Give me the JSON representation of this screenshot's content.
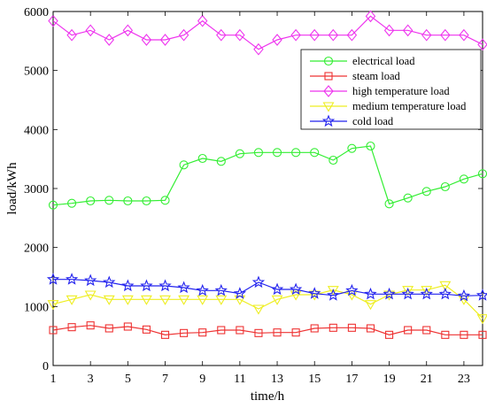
{
  "chart_data": {
    "type": "line",
    "xlabel": "time/h",
    "ylabel": "load/kWh",
    "xlim": [
      1,
      24
    ],
    "ylim": [
      0,
      6000
    ],
    "x": [
      1,
      2,
      3,
      4,
      5,
      6,
      7,
      8,
      9,
      10,
      11,
      12,
      13,
      14,
      15,
      16,
      17,
      18,
      19,
      20,
      21,
      22,
      23,
      24
    ],
    "xticks": [
      1,
      3,
      5,
      7,
      9,
      11,
      13,
      15,
      17,
      19,
      21,
      23
    ],
    "yticks": [
      0,
      1000,
      2000,
      3000,
      4000,
      5000,
      6000
    ],
    "grid": false,
    "legend_position": "top-right",
    "series": [
      {
        "name": "electrical load",
        "color": "#33ee33",
        "marker": "circle",
        "values": [
          2720,
          2750,
          2790,
          2800,
          2790,
          2790,
          2800,
          3400,
          3510,
          3460,
          3590,
          3610,
          3610,
          3610,
          3610,
          3480,
          3680,
          3720,
          2740,
          2840,
          2950,
          3030,
          3160,
          3250
        ]
      },
      {
        "name": "steam load",
        "color": "#ee3333",
        "marker": "square",
        "values": [
          600,
          650,
          680,
          630,
          660,
          610,
          520,
          550,
          560,
          600,
          600,
          550,
          560,
          560,
          630,
          640,
          640,
          630,
          520,
          600,
          600,
          520,
          520,
          520
        ]
      },
      {
        "name": "high temperature load",
        "color": "#ee33ee",
        "marker": "diamond",
        "values": [
          5840,
          5600,
          5680,
          5520,
          5680,
          5520,
          5520,
          5600,
          5840,
          5600,
          5600,
          5360,
          5520,
          5600,
          5600,
          5600,
          5600,
          5920,
          5680,
          5680,
          5600,
          5600,
          5600,
          5440
        ]
      },
      {
        "name": "medium temperature load",
        "color": "#eeee22",
        "marker": "triangle-down",
        "values": [
          1040,
          1120,
          1200,
          1120,
          1120,
          1120,
          1120,
          1120,
          1120,
          1120,
          1120,
          960,
          1120,
          1200,
          1200,
          1280,
          1200,
          1040,
          1200,
          1280,
          1280,
          1360,
          1120,
          800
        ]
      },
      {
        "name": "cold load",
        "color": "#2222ee",
        "marker": "star",
        "values": [
          1460,
          1460,
          1440,
          1410,
          1350,
          1350,
          1350,
          1320,
          1270,
          1270,
          1220,
          1410,
          1290,
          1290,
          1220,
          1190,
          1270,
          1210,
          1210,
          1210,
          1210,
          1210,
          1180,
          1190
        ]
      }
    ]
  }
}
